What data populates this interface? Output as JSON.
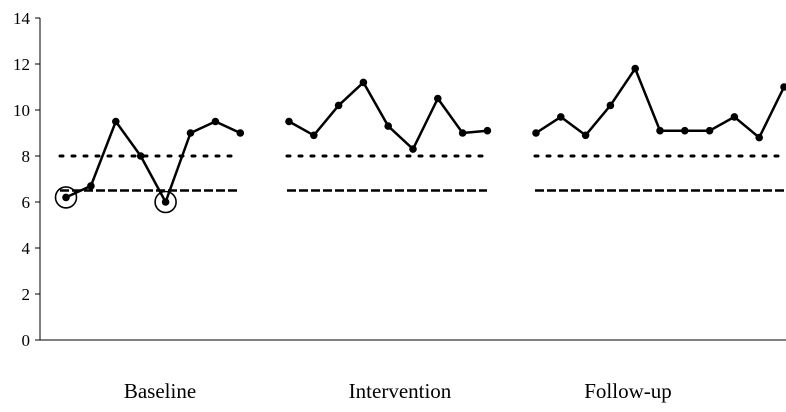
{
  "chart_data": {
    "type": "line",
    "title": "",
    "xlabel": "",
    "ylabel": "",
    "ylim": [
      0,
      14
    ],
    "yticks": [
      0,
      2,
      4,
      6,
      8,
      10,
      12,
      14
    ],
    "grid": false,
    "legend": "none",
    "line_color": "#000000",
    "phases": [
      {
        "label": "Baseline",
        "values": [
          6.2,
          6.7,
          9.5,
          8.0,
          6.0,
          9.0,
          9.5,
          9.0
        ],
        "circled_points": [
          0,
          4
        ],
        "dotted_line": 8.0,
        "dashed_line": 6.5
      },
      {
        "label": "Intervention",
        "values": [
          9.5,
          8.9,
          10.2,
          11.2,
          9.3,
          8.3,
          10.5,
          9.0,
          9.1
        ],
        "circled_points": [],
        "dotted_line": 8.0,
        "dashed_line": 6.5
      },
      {
        "label": "Follow-up",
        "values": [
          9.0,
          9.7,
          8.9,
          10.2,
          11.8,
          9.1,
          9.1,
          9.1,
          9.7,
          8.8,
          11.0
        ],
        "circled_points": [],
        "dotted_line": 8.0,
        "dashed_line": 6.5
      }
    ]
  }
}
